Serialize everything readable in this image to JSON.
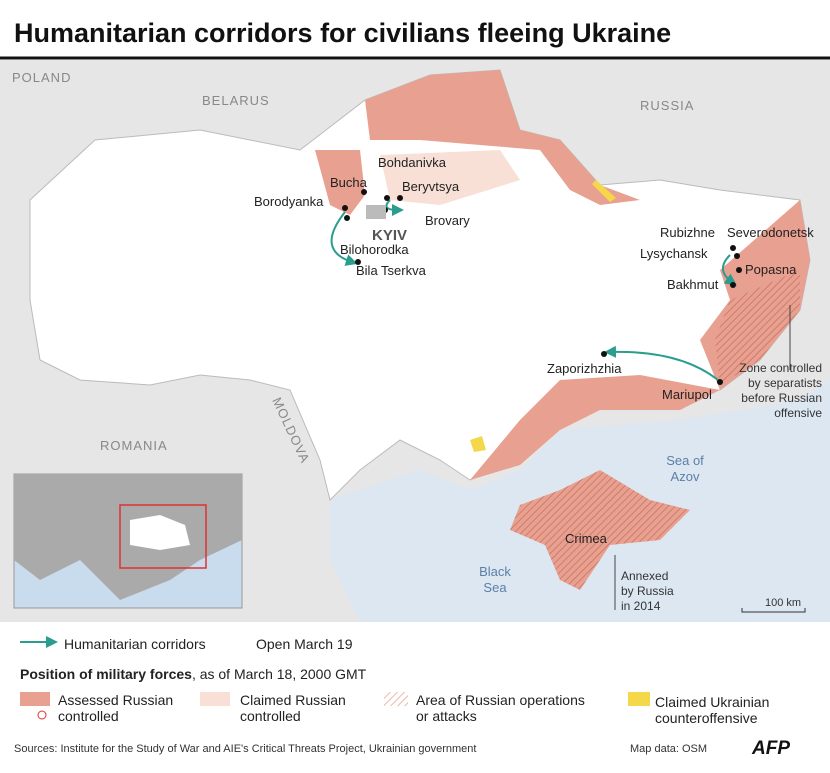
{
  "title": "Humanitarian corridors for civilians fleeing Ukraine",
  "map": {
    "countries": [
      "POLAND",
      "BELARUS",
      "RUSSIA",
      "ROMANIA",
      "MOLDOVA"
    ],
    "capital": "KYIV",
    "places": [
      "Bohdanivka",
      "Bucha",
      "Beryvtsya",
      "Borodyanka",
      "Brovary",
      "Bilohorodka",
      "Bila Tserkva",
      "Rubizhne",
      "Severodonetsk",
      "Lysychansk",
      "Popasna",
      "Bakhmut",
      "Zaporizhzhia",
      "Mariupol",
      "Crimea"
    ],
    "seas": [
      [
        "Sea of",
        "Azov"
      ],
      [
        "Black",
        "Sea"
      ]
    ],
    "notes": [
      [
        "Zone controlled",
        "by separatists",
        "before Russian",
        "offensive"
      ],
      [
        "Annexed",
        "by Russia",
        "in 2014"
      ]
    ],
    "scale": "100 km"
  },
  "legend": {
    "corridors": "Humanitarian corridors",
    "corridors_date": "Open March 19",
    "forces_title": "Position of military forces",
    "forces_date": ", as of March 18, 2000 GMT",
    "items": [
      [
        "Assessed Russian",
        "controlled"
      ],
      [
        "Claimed Russian",
        "controlled"
      ],
      [
        "Area of Russian operations",
        "or attacks"
      ],
      [
        "Claimed Ukrainian",
        "counteroffensive"
      ]
    ]
  },
  "footer": {
    "sources": "Sources: Institute for the Study of War and AIE's Critical Threats Project, Ukrainian government",
    "map_data": "Map data: OSM",
    "logo": "AFP"
  }
}
